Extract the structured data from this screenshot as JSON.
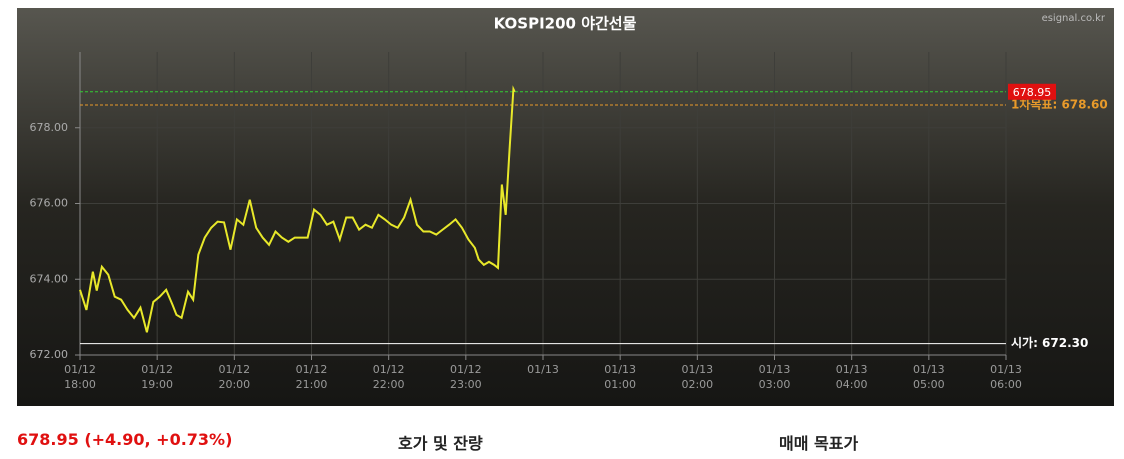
{
  "chart_data": {
    "type": "line",
    "title": "KOSPI200 야간선물",
    "source": "esignal.co.kr",
    "xlim": [
      0,
      720
    ],
    "xticks": [
      {
        "value": 0,
        "label": "01/12 18:00"
      },
      {
        "value": 60,
        "label": "01/12 19:00"
      },
      {
        "value": 120,
        "label": "01/12 20:00"
      },
      {
        "value": 180,
        "label": "01/12 21:00"
      },
      {
        "value": 240,
        "label": "01/12 22:00"
      },
      {
        "value": 300,
        "label": "01/12 23:00"
      },
      {
        "value": 360,
        "label": "01/13"
      },
      {
        "value": 420,
        "label": "01/13 01:00"
      },
      {
        "value": 480,
        "label": "01/13 02:00"
      },
      {
        "value": 540,
        "label": "01/13 03:00"
      },
      {
        "value": 600,
        "label": "01/13 04:00"
      },
      {
        "value": 660,
        "label": "01/13 05:00"
      },
      {
        "value": 720,
        "label": "01/13 06:00"
      }
    ],
    "ylim": [
      672,
      680
    ],
    "yticks": [
      {
        "value": 672,
        "label": "672.00"
      },
      {
        "value": 674,
        "label": "674.00"
      },
      {
        "value": 676,
        "label": "676.00"
      },
      {
        "value": 678,
        "label": "678.00"
      }
    ],
    "grid": true,
    "series": [
      {
        "color": "#e8e82a",
        "x": [
          0,
          5,
          10,
          13,
          17,
          22,
          27,
          32,
          37,
          42,
          47,
          52,
          57,
          62,
          67,
          72,
          75,
          79,
          84,
          88,
          92,
          97,
          102,
          107,
          112,
          117,
          122,
          127,
          132,
          137,
          142,
          147,
          152,
          157,
          162,
          167,
          172,
          177,
          182,
          187,
          192,
          197,
          202,
          207,
          212,
          217,
          222,
          227,
          232,
          237,
          242,
          247,
          252,
          257,
          262,
          267,
          272,
          277,
          282,
          287,
          292,
          297,
          302,
          307,
          310,
          314,
          318,
          322,
          325,
          328,
          331,
          334,
          337,
          338
        ],
        "values": [
          673.72,
          673.19,
          674.2,
          673.7,
          674.33,
          674.12,
          673.54,
          673.46,
          673.19,
          672.98,
          673.25,
          672.6,
          673.4,
          673.54,
          673.72,
          673.32,
          673.06,
          672.98,
          673.67,
          673.46,
          674.65,
          675.1,
          675.36,
          675.52,
          675.5,
          674.78,
          675.58,
          675.44,
          676.1,
          675.36,
          675.1,
          674.91,
          675.26,
          675.1,
          674.99,
          675.1,
          675.1,
          675.1,
          675.84,
          675.7,
          675.44,
          675.52,
          675.05,
          675.63,
          675.63,
          675.31,
          675.44,
          675.36,
          675.7,
          675.58,
          675.44,
          675.36,
          675.63,
          676.1,
          675.44,
          675.26,
          675.26,
          675.18,
          675.31,
          675.44,
          675.58,
          675.36,
          675.05,
          674.83,
          674.52,
          674.38,
          674.46,
          674.38,
          674.3,
          676.5,
          675.7,
          677.43,
          679.02,
          678.95
        ]
      }
    ],
    "reference_lines": [
      {
        "label": "1차목표: 678.60",
        "value": 678.6,
        "color": "#e89a2a"
      },
      {
        "label": "678.95",
        "value": 678.95,
        "color": "#33cc33"
      },
      {
        "label": "시가: 672.30",
        "value": 672.3,
        "color": "#ffffff"
      }
    ]
  },
  "footer": {
    "quote": "678.95 (+4.90, +0.73%)",
    "tab1": "호가 및 잔량",
    "tab2": "매매 목표가"
  }
}
